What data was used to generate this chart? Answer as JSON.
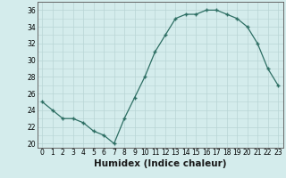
{
  "x": [
    0,
    1,
    2,
    3,
    4,
    5,
    6,
    7,
    8,
    9,
    10,
    11,
    12,
    13,
    14,
    15,
    16,
    17,
    18,
    19,
    20,
    21,
    22,
    23
  ],
  "y": [
    25,
    24,
    23,
    23,
    22.5,
    21.5,
    21,
    20,
    23,
    25.5,
    28,
    31,
    33,
    35,
    35.5,
    35.5,
    36,
    36,
    35.5,
    35,
    34,
    32,
    29,
    27
  ],
  "line_color": "#2d6e63",
  "marker_color": "#2d6e63",
  "bg_color": "#d4ecec",
  "grid_color": "#b8d4d4",
  "xlabel": "Humidex (Indice chaleur)",
  "ylabel": "",
  "xlim": [
    -0.5,
    23.5
  ],
  "ylim": [
    19.5,
    37
  ],
  "yticks": [
    20,
    22,
    24,
    26,
    28,
    30,
    32,
    34,
    36
  ],
  "xticks": [
    0,
    1,
    2,
    3,
    4,
    5,
    6,
    7,
    8,
    9,
    10,
    11,
    12,
    13,
    14,
    15,
    16,
    17,
    18,
    19,
    20,
    21,
    22,
    23
  ],
  "tick_fontsize": 5.5,
  "label_fontsize": 7.5
}
